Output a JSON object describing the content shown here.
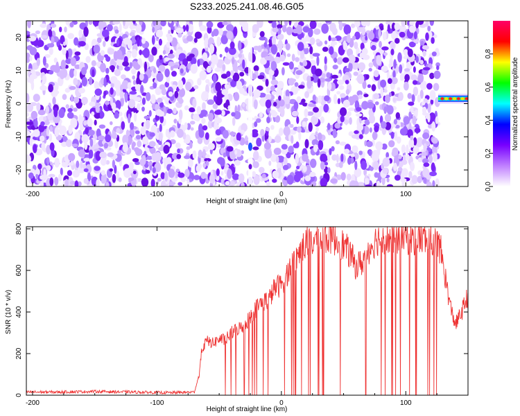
{
  "title": "S233.2025.241.08.46.G05",
  "chart_data": [
    {
      "type": "heatmap",
      "name": "spectrogram",
      "xlabel": "Height of straight line (km)",
      "ylabel": "Frequency (Hz)",
      "xlim": [
        -205,
        150
      ],
      "ylim": [
        -25,
        25
      ],
      "xticks": [
        -200,
        -100,
        0,
        100
      ],
      "yticks": [
        -20,
        -10,
        0,
        10,
        20
      ],
      "data_extent_x": [
        -205,
        126
      ],
      "strong_signal": {
        "x_range": [
          126,
          150
        ],
        "frequency_hz": 1.5
      },
      "colorbar": {
        "label": "Normalized spectral amplitude",
        "range": [
          0,
          1
        ],
        "ticks": [
          0.0,
          0.2,
          0.4,
          0.6,
          0.8
        ],
        "colors": [
          "#ffffff",
          "#c080ff",
          "#7700ff",
          "#0000ff",
          "#00ffff",
          "#00ff00",
          "#ffff00",
          "#ff0000",
          "#ff0066"
        ]
      }
    },
    {
      "type": "line",
      "name": "snr",
      "xlabel": "Height of straight line (km)",
      "ylabel": "SNR (10 * v/v)",
      "xlim": [
        -205,
        150
      ],
      "ylim": [
        0,
        810
      ],
      "xticks": [
        -200,
        -100,
        0,
        100
      ],
      "yticks": [
        0,
        200,
        400,
        600,
        800
      ],
      "color": "#ee3333",
      "series": [
        {
          "name": "SNR",
          "x": [
            -205,
            -180,
            -150,
            -120,
            -90,
            -70,
            -66,
            -64,
            -60,
            -55,
            -50,
            -45,
            -40,
            -35,
            -30,
            -25,
            -20,
            -15,
            -10,
            -5,
            0,
            5,
            10,
            15,
            20,
            25,
            30,
            35,
            40,
            45,
            50,
            55,
            60,
            65,
            70,
            75,
            80,
            85,
            90,
            95,
            100,
            105,
            110,
            115,
            120,
            125,
            128,
            132,
            136,
            140,
            145,
            150
          ],
          "y": [
            15,
            15,
            18,
            15,
            12,
            15,
            100,
            220,
            260,
            250,
            270,
            265,
            300,
            320,
            330,
            380,
            420,
            450,
            460,
            520,
            530,
            590,
            640,
            690,
            730,
            740,
            750,
            755,
            760,
            740,
            720,
            680,
            620,
            640,
            700,
            740,
            760,
            750,
            750,
            760,
            760,
            750,
            755,
            750,
            740,
            730,
            700,
            560,
            420,
            340,
            400,
            480
          ]
        }
      ]
    }
  ]
}
